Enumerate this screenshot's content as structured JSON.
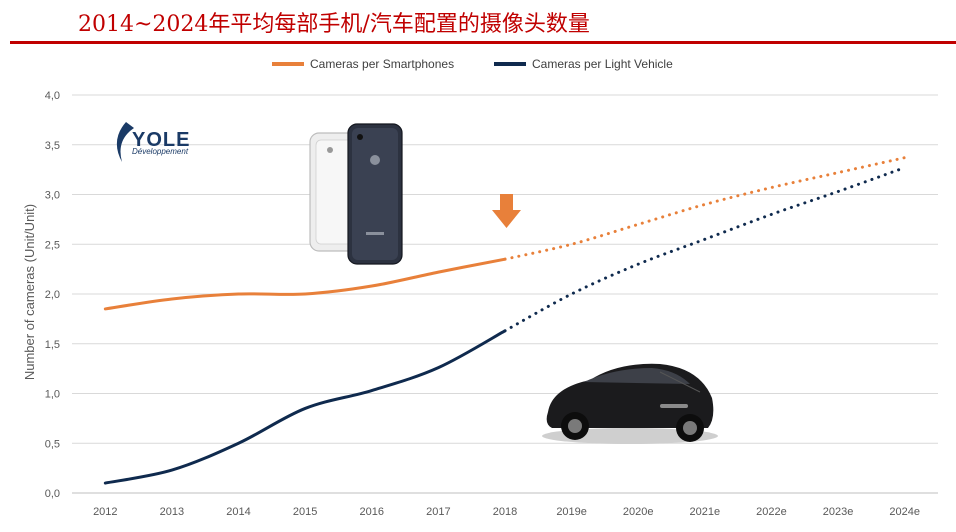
{
  "header": {
    "title": "2014~2024年平均每部手机/汽车配置的摄像头数量"
  },
  "logo": {
    "name": "YOLE",
    "subtitle": "Développement"
  },
  "colors": {
    "smartphones": "#e8803a",
    "vehicle": "#0f2a4e",
    "header": "#c00000",
    "grid": "#d9d9d9",
    "axis_text": "#595959"
  },
  "chart_data": {
    "type": "line",
    "xlabel": "",
    "ylabel": "Number of cameras (Unit/Unit)",
    "x": [
      "2012",
      "2013",
      "2014",
      "2015",
      "2016",
      "2017",
      "2018",
      "2019e",
      "2020e",
      "2021e",
      "2022e",
      "2023e",
      "2024e"
    ],
    "y_ticks": [
      "0,0",
      "0,5",
      "1,0",
      "1,5",
      "2,0",
      "2,5",
      "3,0",
      "3,5",
      "4,0"
    ],
    "ylim": [
      0,
      4
    ],
    "grid": true,
    "legend_position": "top",
    "forecast_from_index": 6,
    "series": [
      {
        "name": "Cameras per Smartphones",
        "values": [
          1.85,
          1.95,
          2.0,
          2.0,
          2.08,
          2.22,
          2.35,
          2.5,
          2.7,
          2.9,
          3.07,
          3.22,
          3.37
        ]
      },
      {
        "name": "Cameras per Light Vehicle",
        "values": [
          0.1,
          0.23,
          0.5,
          0.85,
          1.03,
          1.26,
          1.63,
          2.0,
          2.3,
          2.55,
          2.8,
          3.03,
          3.27
        ]
      }
    ]
  }
}
